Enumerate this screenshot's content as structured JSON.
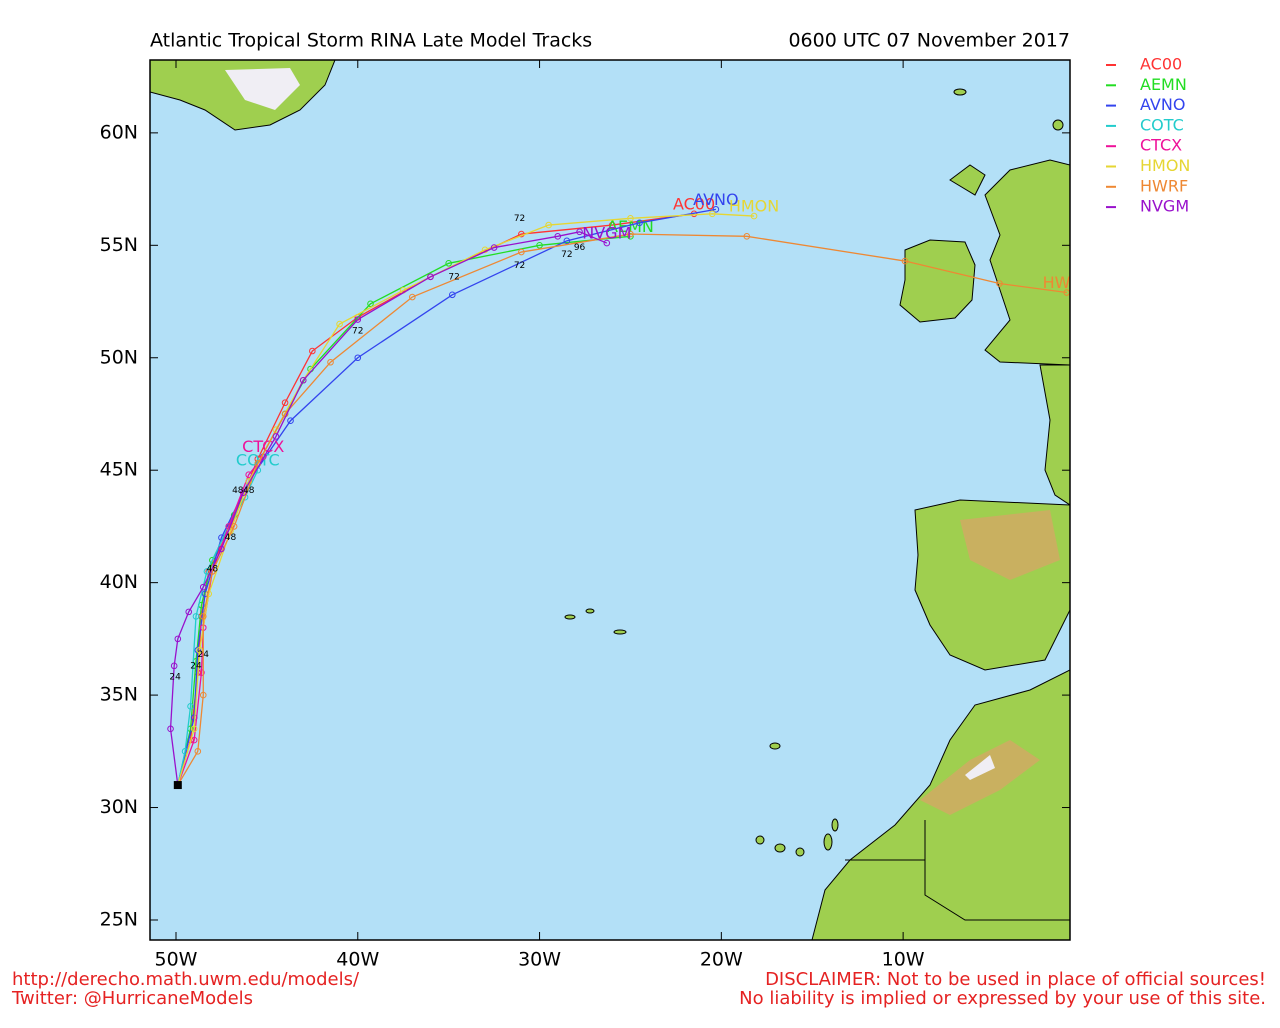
{
  "chart_data": {
    "type": "line",
    "title": "Atlantic Tropical Storm RINA Late Model Tracks",
    "subtitle": "0600 UTC 07 November 2017",
    "footer_left": [
      "http://derecho.math.uwm.edu/models/",
      "Twitter: @HurricaneModels"
    ],
    "footer_right": [
      "DISCLAIMER: Not to be used in place of official sources!",
      "No liability is implied or expressed by your use of this site."
    ],
    "xlim": [
      -51.43,
      -0.82
    ],
    "ylim": [
      24.11,
      63.24
    ],
    "xticks": [
      {
        "value": -50,
        "label": "50W"
      },
      {
        "value": -40,
        "label": "40W"
      },
      {
        "value": -30,
        "label": "30W"
      },
      {
        "value": -20,
        "label": "20W"
      },
      {
        "value": -10,
        "label": "10W"
      }
    ],
    "yticks": [
      {
        "value": 25,
        "label": "25N"
      },
      {
        "value": 30,
        "label": "30N"
      },
      {
        "value": 35,
        "label": "35N"
      },
      {
        "value": 40,
        "label": "40N"
      },
      {
        "value": 45,
        "label": "45N"
      },
      {
        "value": 50,
        "label": "50N"
      },
      {
        "value": 55,
        "label": "55N"
      },
      {
        "value": 60,
        "label": "60N"
      }
    ],
    "series": [
      {
        "name": "AC00",
        "color": "#ff3333",
        "x": [
          -49.9,
          -49.2,
          -48.8,
          -48.6,
          -48.2,
          -47.0,
          -45.5,
          -44.0,
          -42.5,
          -40.0,
          -36.0,
          -31.0,
          -26.0,
          -21.5
        ],
        "values": [
          31.0,
          33.0,
          36.0,
          38.5,
          40.5,
          42.5,
          45.5,
          48.0,
          50.3,
          51.8,
          53.6,
          55.5,
          55.9,
          56.4
        ]
      },
      {
        "name": "AEMN",
        "color": "#22dd22",
        "x": [
          -49.9,
          -49.2,
          -48.9,
          -48.6,
          -48.0,
          -46.8,
          -45.5,
          -44.0,
          -42.6,
          -39.3,
          -35.0,
          -30.0,
          -25.0
        ],
        "values": [
          31.0,
          33.5,
          36.5,
          39.0,
          41.0,
          43.0,
          45.3,
          47.5,
          49.5,
          52.4,
          54.2,
          55.0,
          55.4
        ]
      },
      {
        "name": "AVNO",
        "color": "#3344ee",
        "x": [
          -49.9,
          -49.0,
          -48.8,
          -48.4,
          -47.5,
          -46.0,
          -43.7,
          -40.0,
          -34.8,
          -28.5,
          -24.5,
          -20.3
        ],
        "values": [
          31.0,
          34.0,
          37.0,
          39.5,
          42.0,
          44.5,
          47.2,
          50.0,
          52.8,
          55.2,
          56.0,
          56.6
        ]
      },
      {
        "name": "COTC",
        "color": "#22cccc",
        "x": [
          -49.9,
          -49.5,
          -49.2,
          -48.9,
          -48.3,
          -47.1,
          -46.2,
          -45.5
        ],
        "values": [
          31.0,
          32.5,
          34.5,
          38.5,
          40.5,
          42.5,
          43.8,
          45.0
        ]
      },
      {
        "name": "CTCX",
        "color": "#ee1199",
        "x": [
          -49.9,
          -49.0,
          -48.6,
          -48.5,
          -48.0,
          -47.1,
          -46.0,
          -45.2
        ],
        "values": [
          31.0,
          33.0,
          36.0,
          38.0,
          40.5,
          42.5,
          44.8,
          45.6
        ]
      },
      {
        "name": "HMON",
        "color": "#e6d633",
        "x": [
          -49.9,
          -49.0,
          -48.7,
          -48.2,
          -47.0,
          -46.0,
          -44.5,
          -43.0,
          -41.0,
          -37.5,
          -33.0,
          -29.5,
          -25.0,
          -20.5,
          -18.2
        ],
        "values": [
          31.0,
          33.5,
          37.0,
          39.5,
          42.3,
          44.5,
          46.8,
          49.0,
          51.5,
          53.0,
          54.8,
          55.9,
          56.2,
          56.4,
          56.3
        ]
      },
      {
        "name": "HWRF",
        "color": "#ee8833",
        "x": [
          -49.9,
          -48.8,
          -48.5,
          -48.5,
          -48.0,
          -46.8,
          -45.5,
          -44.0,
          -41.5,
          -37.0,
          -31.0,
          -25.0,
          -18.6,
          -9.9,
          -4.7,
          -1.0
        ],
        "values": [
          31.0,
          32.5,
          35.0,
          38.5,
          40.5,
          42.5,
          45.3,
          47.5,
          49.8,
          52.7,
          54.7,
          55.5,
          55.4,
          54.3,
          53.3,
          52.9
        ]
      },
      {
        "name": "NVGM",
        "color": "#9911cc",
        "x": [
          -49.9,
          -50.3,
          -50.1,
          -49.9,
          -49.3,
          -48.5,
          -47.5,
          -46.3,
          -44.5,
          -43.0,
          -40.0,
          -36.0,
          -32.5,
          -29.0,
          -27.8,
          -26.3
        ],
        "values": [
          31.0,
          33.5,
          36.3,
          37.5,
          38.7,
          39.8,
          41.5,
          44.0,
          46.5,
          49.0,
          51.7,
          53.6,
          54.9,
          55.4,
          55.6,
          55.1
        ]
      }
    ],
    "annotations": [
      {
        "text": "72",
        "x": -31.1,
        "y": 56.2
      },
      {
        "text": "72",
        "x": -31.1,
        "y": 54.1
      },
      {
        "text": "72",
        "x": -40.0,
        "y": 51.2
      },
      {
        "text": "72",
        "x": -34.7,
        "y": 53.6
      },
      {
        "text": "72",
        "x": -28.5,
        "y": 54.6
      },
      {
        "text": "96",
        "x": -27.8,
        "y": 54.9
      },
      {
        "text": "48",
        "x": -46.6,
        "y": 44.1
      },
      {
        "text": "48",
        "x": -46.0,
        "y": 44.1
      },
      {
        "text": "48",
        "x": -47.0,
        "y": 42.0
      },
      {
        "text": "48",
        "x": -48.0,
        "y": 40.6
      },
      {
        "text": "24",
        "x": -50.05,
        "y": 35.8
      },
      {
        "text": "24",
        "x": -48.9,
        "y": 36.3
      },
      {
        "text": "24",
        "x": -48.5,
        "y": 36.8
      }
    ]
  }
}
